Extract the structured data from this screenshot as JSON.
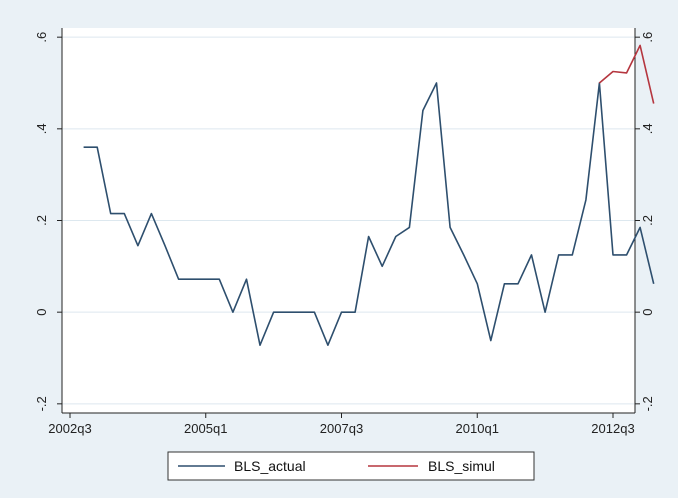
{
  "chart_data": {
    "type": "line",
    "x_tick_labels": [
      "2002q3",
      "2005q1",
      "2007q3",
      "2010q1",
      "2012q3"
    ],
    "x_tick_positions": [
      0,
      10,
      20,
      30,
      40
    ],
    "y_tick_labels": [
      "-.2",
      "0",
      ".2",
      ".4",
      ".6"
    ],
    "y_tick_values": [
      -0.2,
      0,
      0.2,
      0.4,
      0.6
    ],
    "ylim": [
      -0.22,
      0.62
    ],
    "grid": true,
    "legend_placement": "bottom",
    "series": [
      {
        "name": "BLS_actual",
        "color": "#2e4f6e",
        "points": [
          [
            1,
            0.36
          ],
          [
            2,
            0.36
          ],
          [
            3,
            0.215
          ],
          [
            4,
            0.215
          ],
          [
            5,
            0.145
          ],
          [
            6,
            0.215
          ],
          [
            7,
            0.145
          ],
          [
            8,
            0.072
          ],
          [
            9,
            0.072
          ],
          [
            10,
            0.072
          ],
          [
            11,
            0.072
          ],
          [
            12,
            0.0
          ],
          [
            13,
            0.072
          ],
          [
            14,
            -0.072
          ],
          [
            15,
            0.0
          ],
          [
            16,
            0.0
          ],
          [
            17,
            0.0
          ],
          [
            18,
            0.0
          ],
          [
            19,
            -0.072
          ],
          [
            20,
            0.0
          ],
          [
            21,
            0.0
          ],
          [
            22,
            0.165
          ],
          [
            23,
            0.1
          ],
          [
            24,
            0.165
          ],
          [
            25,
            0.185
          ],
          [
            26,
            0.44
          ],
          [
            27,
            0.5
          ],
          [
            28,
            0.185
          ],
          [
            29,
            0.125
          ],
          [
            30,
            0.062
          ],
          [
            31,
            -0.062
          ],
          [
            32,
            0.062
          ],
          [
            33,
            0.062
          ],
          [
            34,
            0.125
          ],
          [
            35,
            0.0
          ],
          [
            36,
            0.125
          ],
          [
            37,
            0.125
          ],
          [
            38,
            0.245
          ],
          [
            39,
            0.5
          ],
          [
            40,
            0.125
          ],
          [
            41,
            0.125
          ],
          [
            42,
            0.185
          ],
          [
            43,
            0.062
          ]
        ]
      },
      {
        "name": "BLS_simul",
        "color": "#b5363f",
        "points": [
          [
            39,
            0.5
          ],
          [
            40,
            0.525
          ],
          [
            41,
            0.522
          ],
          [
            42,
            0.582
          ],
          [
            43,
            0.455
          ]
        ]
      }
    ]
  }
}
